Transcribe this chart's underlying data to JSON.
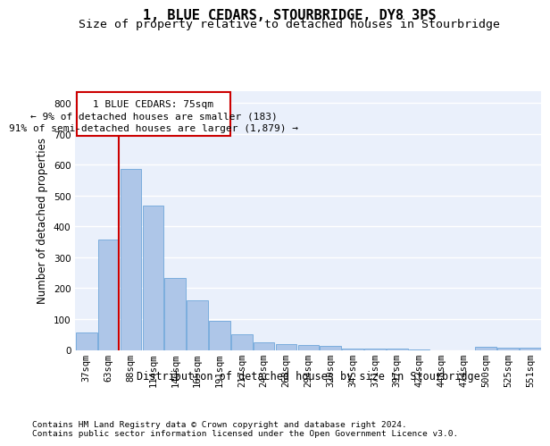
{
  "title": "1, BLUE CEDARS, STOURBRIDGE, DY8 3PS",
  "subtitle": "Size of property relative to detached houses in Stourbridge",
  "xlabel": "Distribution of detached houses by size in Stourbridge",
  "ylabel": "Number of detached properties",
  "categories": [
    "37sqm",
    "63sqm",
    "88sqm",
    "114sqm",
    "140sqm",
    "165sqm",
    "191sqm",
    "217sqm",
    "243sqm",
    "268sqm",
    "294sqm",
    "320sqm",
    "345sqm",
    "371sqm",
    "397sqm",
    "422sqm",
    "448sqm",
    "474sqm",
    "500sqm",
    "525sqm",
    "551sqm"
  ],
  "values": [
    57,
    357,
    588,
    468,
    232,
    162,
    95,
    50,
    25,
    20,
    17,
    14,
    5,
    3,
    3,
    2,
    0,
    0,
    10,
    8,
    7
  ],
  "bar_color": "#aec6e8",
  "bar_edge_color": "#5b9bd5",
  "bg_color": "#eaf0fb",
  "grid_color": "#ffffff",
  "property_line_color": "#cc0000",
  "annotation_line1": "1 BLUE CEDARS: 75sqm",
  "annotation_line2": "← 9% of detached houses are smaller (183)",
  "annotation_line3": "91% of semi-detached houses are larger (1,879) →",
  "annotation_box_color": "#cc0000",
  "footnote1": "Contains HM Land Registry data © Crown copyright and database right 2024.",
  "footnote2": "Contains public sector information licensed under the Open Government Licence v3.0.",
  "ylim": [
    0,
    840
  ],
  "yticks": [
    0,
    100,
    200,
    300,
    400,
    500,
    600,
    700,
    800
  ],
  "title_fontsize": 11,
  "subtitle_fontsize": 9.5,
  "axis_label_fontsize": 8.5,
  "tick_fontsize": 7.5,
  "footnote_fontsize": 6.8,
  "ann_fontsize": 8.0
}
